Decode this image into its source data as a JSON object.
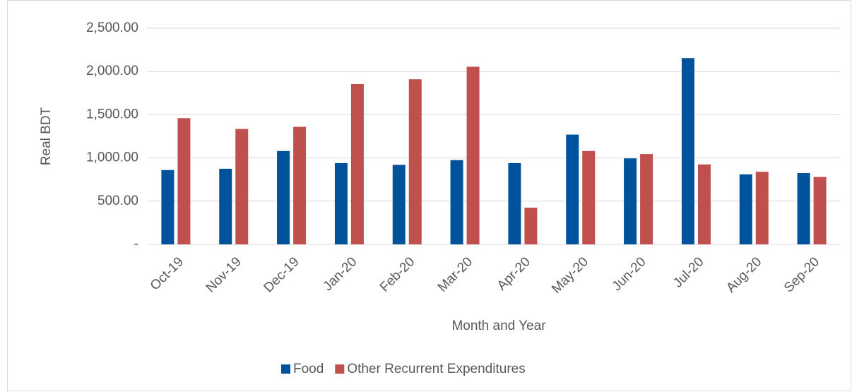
{
  "chart_data": {
    "type": "bar",
    "x_label": "Month and Year",
    "y_label": "Real BDT",
    "categories": [
      "Oct-19",
      "Nov-19",
      "Dec-19",
      "Jan-20",
      "Feb-20",
      "Mar-20",
      "Apr-20",
      "May-20",
      "Jun-20",
      "Jul-20",
      "Aug-20",
      "Sep-20"
    ],
    "series": [
      {
        "name": "Food",
        "color": "#00539b",
        "values": [
          860,
          875,
          1080,
          940,
          920,
          975,
          940,
          1270,
          995,
          2155,
          810,
          825
        ]
      },
      {
        "name": "Other Recurrent Expenditures",
        "color": "#c0504d",
        "values": [
          1460,
          1335,
          1360,
          1855,
          1910,
          2055,
          425,
          1080,
          1045,
          925,
          840,
          780
        ]
      }
    ],
    "ylim": [
      0,
      2500
    ],
    "yticks": [
      {
        "value": 0,
        "label": "-"
      },
      {
        "value": 500,
        "label": "500.00"
      },
      {
        "value": 1000,
        "label": "1,000.00"
      },
      {
        "value": 1500,
        "label": "1,500.00"
      },
      {
        "value": 2000,
        "label": "2,000.00"
      },
      {
        "value": 2500,
        "label": "2,500.00"
      }
    ],
    "grid": true,
    "legend": "bottom"
  }
}
